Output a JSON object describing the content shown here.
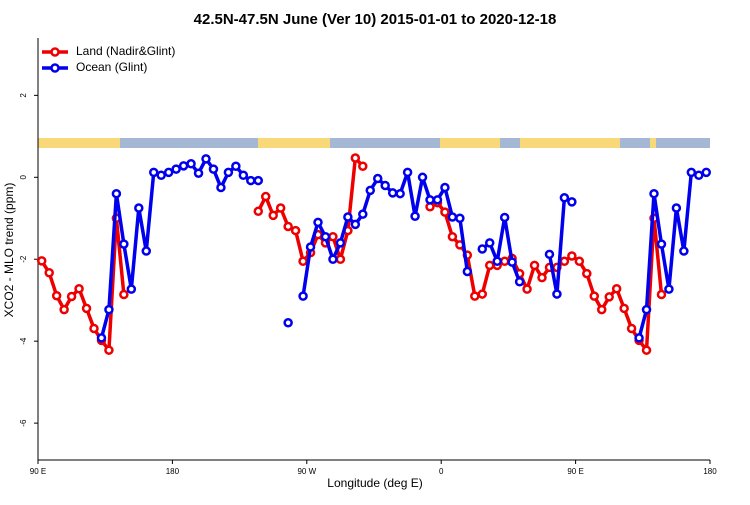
{
  "chart_data": {
    "type": "line",
    "title": "42.5N-47.5N June (Ver 10)   2015-01-01 to 2020-12-18",
    "x_label": "Longitude (deg E)",
    "y_label": "XCO2 - MLO trend (ppm)",
    "legend": "topleft",
    "x": [
      92.5,
      97.5,
      102.5,
      107.5,
      112.5,
      117.5,
      122.5,
      127.5,
      132.5,
      137.5,
      142.5,
      147.5,
      152.5,
      157.5,
      162.5,
      167.5,
      172.5,
      177.5,
      182.5,
      187.5,
      192.5,
      197.5,
      202.5,
      207.5,
      212.5,
      217.5,
      222.5,
      227.5,
      232.5,
      237.5,
      242.5,
      247.5,
      252.5,
      257.5,
      262.5,
      267.5,
      272.5,
      277.5,
      282.5,
      287.5,
      292.5,
      297.5,
      302.5,
      307.5,
      312.5,
      317.5,
      322.5,
      327.5,
      332.5,
      337.5,
      342.5,
      347.5,
      352.5,
      357.5,
      362.5,
      367.5,
      372.5,
      377.5,
      382.5,
      387.5,
      392.5,
      397.5,
      402.5,
      407.5,
      412.5,
      417.5,
      422.5,
      427.5,
      432.5,
      437.5,
      442.5,
      447.5,
      452.5,
      457.5,
      462.5,
      467.5,
      472.5,
      477.5,
      482.5,
      487.5,
      492.5,
      497.5,
      502.5,
      507.5,
      512.5,
      517.5,
      522.5,
      527.5,
      532.5,
      537.5
    ],
    "series": [
      {
        "name": "Land (Nadir&Glint)",
        "color": "#ee0000",
        "values": [
          -2.04,
          -2.33,
          -2.89,
          -3.23,
          -2.91,
          -2.72,
          -3.2,
          -3.69,
          -3.98,
          -4.22,
          -1.0,
          -2.86,
          null,
          null,
          null,
          null,
          null,
          null,
          null,
          null,
          null,
          null,
          null,
          null,
          null,
          null,
          null,
          null,
          null,
          -0.83,
          -0.47,
          -0.93,
          -0.75,
          -1.2,
          -1.3,
          -2.05,
          -1.84,
          -1.4,
          -1.6,
          -1.45,
          -2.0,
          -1.3,
          0.47,
          0.27,
          null,
          null,
          null,
          null,
          null,
          null,
          null,
          null,
          -0.72,
          -0.62,
          -0.85,
          -1.45,
          -1.65,
          -1.9,
          -2.9,
          -2.85,
          -2.15,
          -2.15,
          -2.05,
          -1.98,
          -2.35,
          -2.73,
          -2.15,
          -2.45,
          -2.2,
          -2.2,
          -2.05,
          -1.92,
          -2.05,
          -2.35,
          -2.9,
          -3.23,
          -2.92,
          -2.72,
          -3.2,
          -3.69,
          -3.98,
          -4.22,
          -1.0,
          -2.86,
          null,
          null,
          null,
          null,
          null,
          null
        ]
      },
      {
        "name": "Ocean (Glint)",
        "color": "#0000ee",
        "values": [
          null,
          null,
          null,
          null,
          null,
          null,
          null,
          null,
          -3.92,
          -3.23,
          -0.4,
          -1.63,
          -2.73,
          -0.75,
          -1.8,
          0.12,
          0.05,
          0.12,
          0.2,
          0.28,
          0.33,
          0.1,
          0.45,
          0.2,
          -0.25,
          0.12,
          0.27,
          0.05,
          -0.08,
          -0.08,
          null,
          null,
          null,
          -3.55,
          null,
          -2.9,
          -1.7,
          -1.1,
          -1.45,
          -2.0,
          -1.6,
          -0.97,
          -1.15,
          -0.9,
          -0.32,
          -0.03,
          -0.2,
          -0.38,
          -0.4,
          0.12,
          -0.95,
          0.0,
          -0.55,
          -0.55,
          -0.25,
          -0.97,
          -1.0,
          -2.3,
          null,
          -1.75,
          -1.6,
          -2.05,
          -0.98,
          -2.07,
          -2.55,
          null,
          null,
          null,
          -1.88,
          -2.85,
          -0.5,
          -0.6,
          null,
          null,
          null,
          null,
          null,
          null,
          null,
          null,
          -3.92,
          -3.23,
          -0.4,
          -1.63,
          -2.73,
          -0.75,
          -1.8,
          0.12,
          0.05,
          0.12
        ]
      }
    ],
    "xlim": [
      90,
      540
    ],
    "xticks": [
      {
        "value": 90,
        "label": "90 E"
      },
      180,
      {
        "value": 270,
        "label": "90 W"
      },
      {
        "value": 360,
        "label": "0"
      },
      {
        "value": 450,
        "label": "90 E"
      },
      {
        "value": 540,
        "label": "180"
      }
    ],
    "ylim": [
      -6.9,
      3.4
    ],
    "yticks": [
      -6,
      -4,
      -2,
      0,
      2
    ]
  }
}
